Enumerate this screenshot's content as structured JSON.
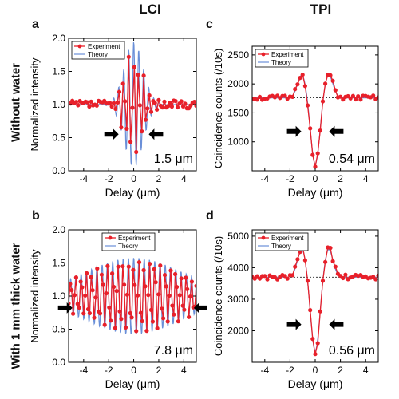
{
  "column_titles": {
    "left": "LCI",
    "right": "TPI"
  },
  "row_titles": {
    "top": "Without water",
    "bottom": "With 1 mm thick water"
  },
  "colors": {
    "experiment": "#e8202a",
    "theory": "#6a8fd8",
    "baseline": "#222222",
    "arrow": "#000000"
  },
  "chart_data": [
    {
      "panel": "a",
      "type": "line",
      "xlabel": "Delay (μm)",
      "ylabel": "Normalized intensity",
      "xlim": [
        -5.2,
        5
      ],
      "ylim": [
        0,
        2.0
      ],
      "xticks": [
        -4,
        -2,
        0,
        2,
        4
      ],
      "xtick_labels": [
        "-4",
        "-2",
        "0",
        "2",
        "4"
      ],
      "yticks": [
        0,
        0.5,
        1.0,
        1.5,
        2.0
      ],
      "ytick_labels": [
        "0.0",
        "0.5",
        "1.0",
        "1.5",
        "2.0"
      ],
      "annotation": "1.5 μm",
      "legend": [
        "Experiment",
        "Theory"
      ],
      "legend_position": "top-left",
      "arrows_x": [
        -1.2,
        1.2
      ],
      "arrows_y": 0.55,
      "series": [
        {
          "name": "Experiment",
          "kind": "oscillation",
          "step": 0.15,
          "x_min": -5.2,
          "x_max": 5.0,
          "base": 1.0,
          "amplitude": 0.78,
          "width": 0.75,
          "period": 0.4,
          "noise": 0.06
        },
        {
          "name": "Theory",
          "kind": "oscillation",
          "step": 0.03,
          "x_min": -5.2,
          "x_max": 5.0,
          "base": 1.0,
          "amplitude": 0.95,
          "width": 0.75,
          "period": 0.4,
          "noise": 0
        }
      ]
    },
    {
      "panel": "b",
      "type": "line",
      "xlabel": "Delay (μm)",
      "ylabel": "Normalized intensity",
      "xlim": [
        -5.2,
        5
      ],
      "ylim": [
        0,
        2.0
      ],
      "xticks": [
        -4,
        -2,
        0,
        2,
        4
      ],
      "xtick_labels": [
        "-4",
        "-2",
        "0",
        "2",
        "4"
      ],
      "yticks": [
        0,
        0.5,
        1.0,
        1.5,
        2.0
      ],
      "ytick_labels": [
        "0.0",
        "0.5",
        "1.0",
        "1.5",
        "2.0"
      ],
      "annotation": "7.8 μm",
      "legend": [
        "Experiment",
        "Theory"
      ],
      "legend_position": "top",
      "arrows_x": [
        -4.9,
        4.8
      ],
      "arrows_y": 0.82,
      "series": [
        {
          "name": "Experiment",
          "kind": "oscillation",
          "step": 0.12,
          "x_min": -5.2,
          "x_max": 5.0,
          "base": 1.0,
          "amplitude": 0.5,
          "width": 4.0,
          "period": 0.42,
          "noise": 0.05
        },
        {
          "name": "Theory",
          "kind": "oscillation",
          "step": 0.03,
          "x_min": -5.2,
          "x_max": 5.0,
          "base": 1.0,
          "amplitude": 0.58,
          "width": 4.0,
          "period": 0.42,
          "noise": 0
        }
      ]
    },
    {
      "panel": "c",
      "type": "line",
      "xlabel": "Delay (μm)",
      "ylabel": "Coincidence counts (/10s)",
      "xlim": [
        -5,
        5
      ],
      "ylim": [
        500,
        2650
      ],
      "xticks": [
        -4,
        -2,
        0,
        2,
        4
      ],
      "xtick_labels": [
        "-4",
        "-2",
        "0",
        "2",
        "4"
      ],
      "yticks": [
        1000,
        1500,
        2000,
        2500
      ],
      "ytick_labels": [
        "1000",
        "1500",
        "2000",
        "2500"
      ],
      "annotation": "0.54 μm",
      "legend": [
        "Experiment",
        "Theory"
      ],
      "legend_position": "top-left",
      "arrows_x": [
        -1.1,
        1.1
      ],
      "arrows_y": 1180,
      "baseline": 1760,
      "series": [
        {
          "name": "Experiment",
          "kind": "dip",
          "step": 0.2,
          "x_min": -5,
          "x_max": 5,
          "base": 1760,
          "depth": 1200,
          "dip_width": 0.35,
          "bump": 420,
          "bump_pos": 1.05,
          "bump_width": 0.35,
          "noise": 40
        },
        {
          "name": "Theory",
          "kind": "dip",
          "step": 0.04,
          "x_min": -5,
          "x_max": 5,
          "base": 1760,
          "depth": 1150,
          "dip_width": 0.35,
          "bump": 400,
          "bump_pos": 1.05,
          "bump_width": 0.35,
          "noise": 0
        }
      ]
    },
    {
      "panel": "d",
      "type": "line",
      "xlabel": "Delay (μm)",
      "ylabel": "Coincidence counts (/10s)",
      "xlim": [
        -5,
        5
      ],
      "ylim": [
        1000,
        5200
      ],
      "xticks": [
        -4,
        -2,
        0,
        2,
        4
      ],
      "xtick_labels": [
        "-4",
        "-2",
        "0",
        "2",
        "4"
      ],
      "yticks": [
        2000,
        3000,
        4000,
        5000
      ],
      "ytick_labels": [
        "2000",
        "3000",
        "4000",
        "5000"
      ],
      "annotation": "0.56 μm",
      "legend": [
        "Experiment",
        "Theory"
      ],
      "legend_position": "top-left",
      "arrows_x": [
        -1.1,
        1.1
      ],
      "arrows_y": 2200,
      "baseline": 3700,
      "series": [
        {
          "name": "Experiment",
          "kind": "dip",
          "step": 0.2,
          "x_min": -5,
          "x_max": 5,
          "base": 3700,
          "depth": 2450,
          "dip_width": 0.35,
          "bump": 950,
          "bump_pos": 1.05,
          "bump_width": 0.35,
          "noise": 80
        },
        {
          "name": "Theory",
          "kind": "dip",
          "step": 0.04,
          "x_min": -5,
          "x_max": 5,
          "base": 3700,
          "depth": 2350,
          "dip_width": 0.35,
          "bump": 900,
          "bump_pos": 1.05,
          "bump_width": 0.35,
          "noise": 0
        }
      ]
    }
  ]
}
